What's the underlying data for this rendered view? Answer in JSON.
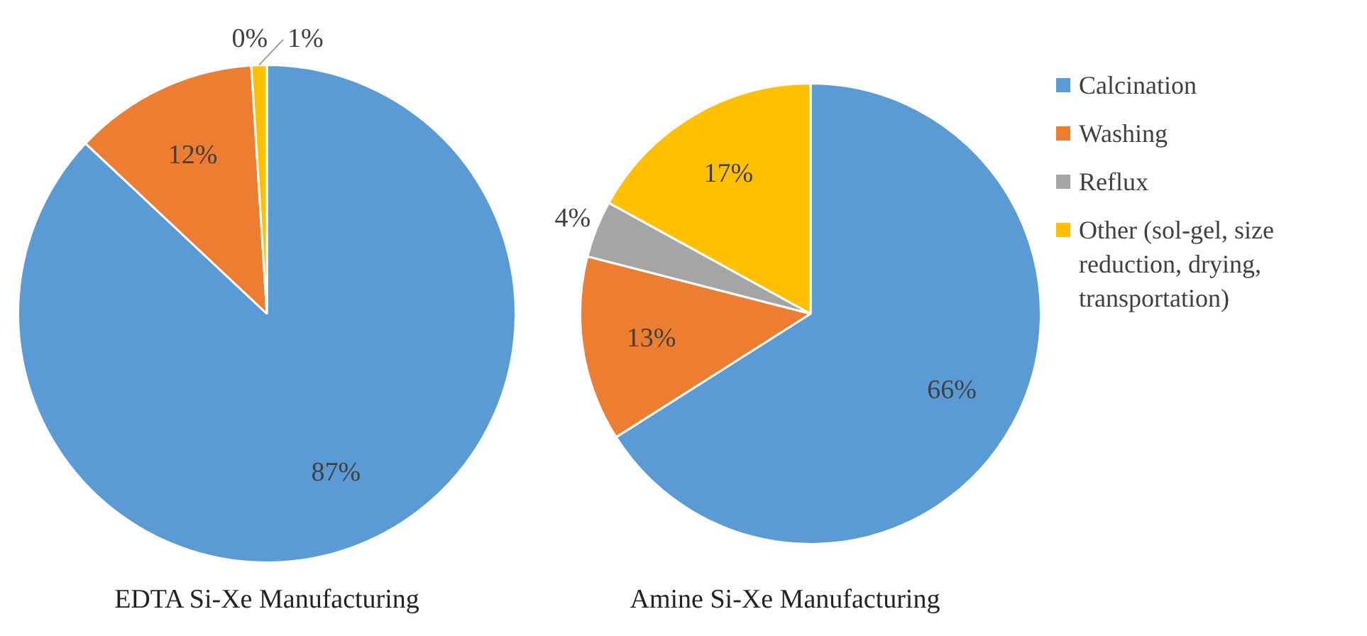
{
  "chart_data": [
    {
      "type": "pie",
      "title": "EDTA Si-Xe Manufacturing",
      "categories": [
        null,
        null,
        null,
        null
      ],
      "values": [
        87,
        12,
        0,
        1
      ],
      "colors": [
        "#5b9bd5",
        "#ed7d31",
        "#a5a5a5",
        "#ffc000"
      ],
      "value_labels": [
        "87%",
        "12%",
        "0%",
        "1%"
      ]
    },
    {
      "type": "pie",
      "title": "Amine Si-Xe Manufacturing",
      "categories": [
        "Calcination",
        "Washing",
        "Reflux",
        "Other (sol-gel, size reduction, drying, transportation)"
      ],
      "values": [
        66,
        13,
        4,
        17
      ],
      "colors": [
        "#5b9bd5",
        "#ed7d31",
        "#a5a5a5",
        "#ffc000"
      ],
      "value_labels": [
        "66%",
        "13%",
        "4%",
        "17%"
      ],
      "legend": "right"
    }
  ]
}
